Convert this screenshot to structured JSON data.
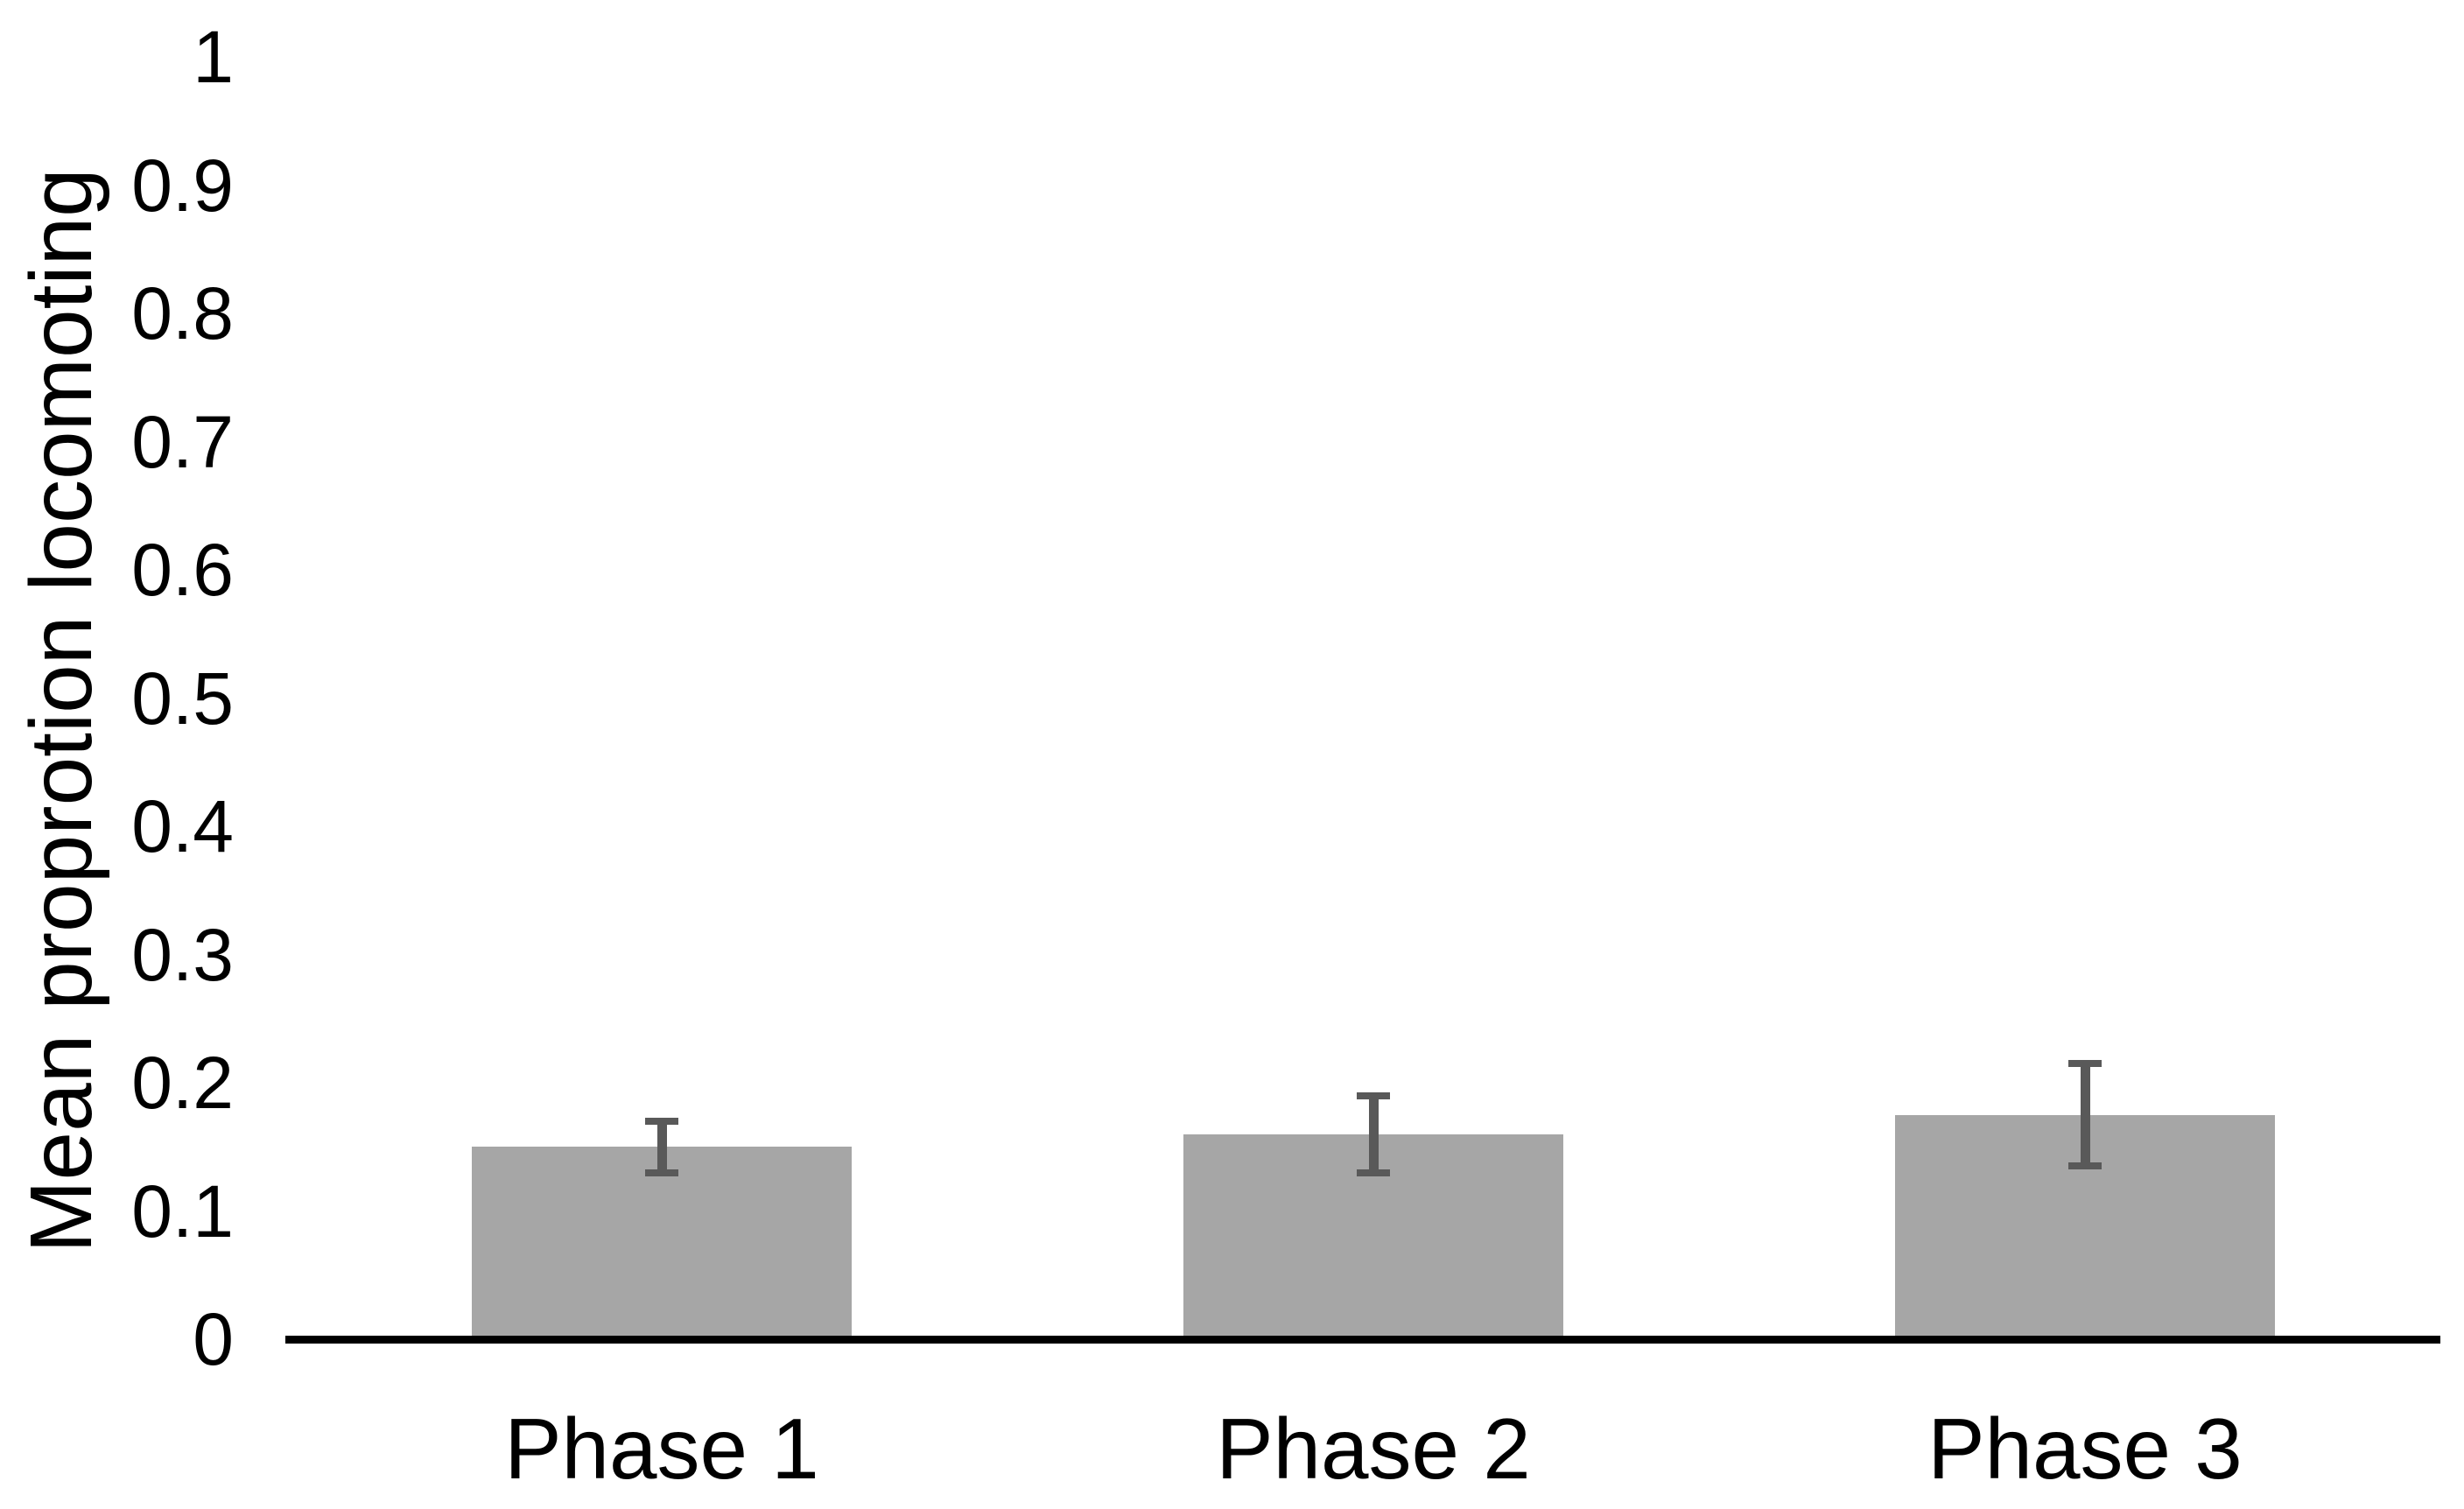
{
  "chart_data": {
    "type": "bar",
    "title": "",
    "xlabel": "",
    "ylabel": "Mean proprotion locomoting",
    "categories": [
      "Phase 1",
      "Phase 2",
      "Phase 3"
    ],
    "values": [
      0.15,
      0.16,
      0.175
    ],
    "errors": [
      0.02,
      0.03,
      0.04
    ],
    "ylim": [
      0,
      1
    ],
    "ytick_step": 0.1,
    "yticks": [
      "0",
      "0.1",
      "0.2",
      "0.3",
      "0.4",
      "0.5",
      "0.6",
      "0.7",
      "0.8",
      "0.9",
      "1"
    ],
    "grid": "off",
    "legend": "none",
    "colors": {
      "bar_fill": "#A6A6A6",
      "error_bar": "#595959",
      "axis_line": "#000000",
      "text": "#000000"
    }
  }
}
